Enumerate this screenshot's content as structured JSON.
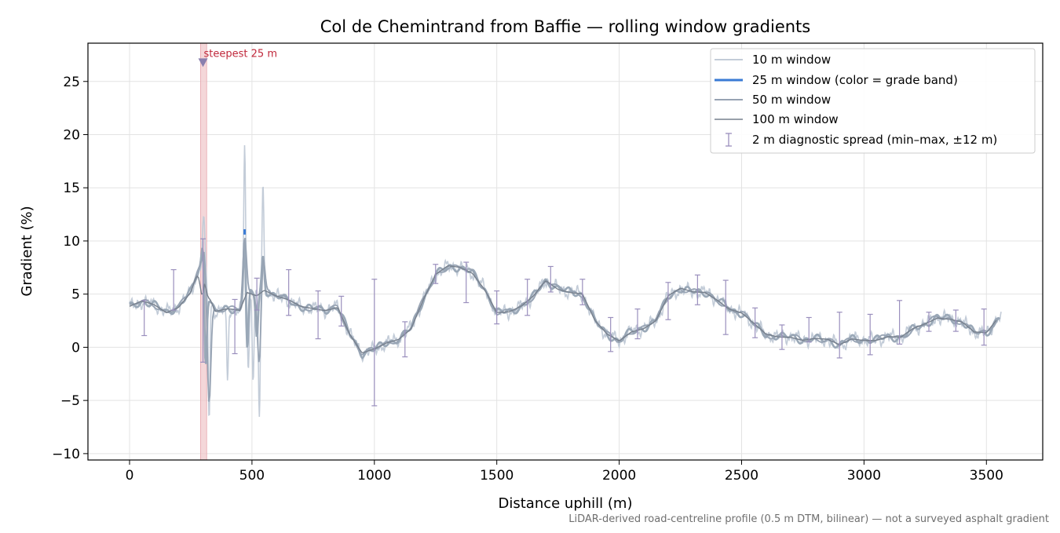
{
  "chart_data": {
    "type": "line",
    "title": "Col de Chemintrand from Baffie — rolling window gradients",
    "xlabel": "Distance uphill (m)",
    "ylabel": "Gradient (%)",
    "xlim": [
      -170,
      3730
    ],
    "ylim": [
      -10.6,
      28.6
    ],
    "xticks": [
      0,
      500,
      1000,
      1500,
      2000,
      2500,
      3000,
      3500
    ],
    "yticks": [
      -10,
      -5,
      0,
      5,
      10,
      15,
      20,
      25
    ],
    "xtick_labels": [
      "0",
      "500",
      "1000",
      "1500",
      "2000",
      "2500",
      "3000",
      "3500"
    ],
    "ytick_labels": [
      "−10",
      "−5",
      "0",
      "5",
      "10",
      "15",
      "20",
      "25"
    ],
    "grid": true,
    "legend_placement": "upper right",
    "footnote": "LiDAR-derived road-centreline profile (0.5 m DTM, bilinear) — not a surveyed asphalt gradient",
    "annotation": {
      "text": "steepest 25 m",
      "x": 300,
      "y": 26.8,
      "band": [
        290,
        315
      ]
    },
    "colors": {
      "w10": "#c3ccd8",
      "w25": "#3a7bd5",
      "w25_line": "#9aa8b7",
      "w50": "#97a3b3",
      "w100": "#77808d",
      "spread": "#9a8fbd",
      "band": "#f0c9cc",
      "band_edge": "#e6a6ad",
      "marker": "#8a7fae"
    },
    "series": [
      {
        "key": "w10",
        "name": "10 m window"
      },
      {
        "key": "w25",
        "name": "25 m window (color = grade band)"
      },
      {
        "key": "w50",
        "name": "50 m window"
      },
      {
        "key": "w100",
        "name": "100 m window"
      },
      {
        "key": "spread",
        "name": "2 m diagnostic spread (min–max, ±12 m)"
      }
    ],
    "profile_points": [
      [
        0,
        3.8
      ],
      [
        50,
        4.3
      ],
      [
        100,
        4.0
      ],
      [
        150,
        3.3
      ],
      [
        200,
        3.8
      ],
      [
        250,
        5.2
      ],
      [
        290,
        7.8
      ],
      [
        305,
        9.5
      ],
      [
        320,
        5.0
      ],
      [
        350,
        3.3
      ],
      [
        400,
        3.6
      ],
      [
        450,
        3.5
      ],
      [
        480,
        5.2
      ],
      [
        520,
        4.9
      ],
      [
        550,
        5.4
      ],
      [
        600,
        4.8
      ],
      [
        650,
        4.4
      ],
      [
        700,
        3.8
      ],
      [
        800,
        3.5
      ],
      [
        850,
        3.8
      ],
      [
        900,
        1.2
      ],
      [
        950,
        -0.6
      ],
      [
        1000,
        -0.2
      ],
      [
        1050,
        0.4
      ],
      [
        1100,
        0.8
      ],
      [
        1150,
        1.8
      ],
      [
        1200,
        4.5
      ],
      [
        1250,
        6.8
      ],
      [
        1300,
        7.6
      ],
      [
        1350,
        7.5
      ],
      [
        1400,
        7.0
      ],
      [
        1450,
        5.5
      ],
      [
        1500,
        3.3
      ],
      [
        1550,
        3.3
      ],
      [
        1600,
        3.8
      ],
      [
        1650,
        4.8
      ],
      [
        1700,
        6.3
      ],
      [
        1750,
        5.5
      ],
      [
        1800,
        5.2
      ],
      [
        1850,
        5.0
      ],
      [
        1900,
        2.5
      ],
      [
        1950,
        1.2
      ],
      [
        2000,
        0.6
      ],
      [
        2050,
        1.5
      ],
      [
        2100,
        1.8
      ],
      [
        2150,
        2.5
      ],
      [
        2200,
        4.8
      ],
      [
        2250,
        5.5
      ],
      [
        2300,
        5.2
      ],
      [
        2350,
        5.2
      ],
      [
        2400,
        4.5
      ],
      [
        2450,
        3.6
      ],
      [
        2500,
        3.2
      ],
      [
        2550,
        2.2
      ],
      [
        2600,
        1.2
      ],
      [
        2650,
        1.0
      ],
      [
        2700,
        1.0
      ],
      [
        2750,
        0.7
      ],
      [
        2800,
        0.8
      ],
      [
        2850,
        0.7
      ],
      [
        2900,
        0.2
      ],
      [
        2950,
        0.8
      ],
      [
        3000,
        0.7
      ],
      [
        3050,
        0.7
      ],
      [
        3100,
        1.0
      ],
      [
        3150,
        0.9
      ],
      [
        3200,
        1.7
      ],
      [
        3250,
        2.2
      ],
      [
        3300,
        2.8
      ],
      [
        3350,
        2.7
      ],
      [
        3400,
        2.4
      ],
      [
        3450,
        1.4
      ],
      [
        3500,
        1.3
      ],
      [
        3550,
        2.8
      ]
    ],
    "spikes_10m": [
      [
        302,
        12.0
      ],
      [
        325,
        -6.5
      ],
      [
        470,
        19.2
      ],
      [
        485,
        -2.5
      ],
      [
        530,
        -6.6
      ],
      [
        545,
        15.1
      ],
      [
        505,
        -3.0
      ],
      [
        400,
        -3.2
      ]
    ],
    "spikes_25m": [
      [
        300,
        10.1
      ],
      [
        310,
        -1.5
      ],
      [
        470,
        11.0
      ],
      [
        480,
        -1.0
      ],
      [
        545,
        8.6
      ],
      [
        520,
        1.0
      ]
    ],
    "spikes_50m": [
      [
        300,
        8.8
      ],
      [
        325,
        -5.0
      ],
      [
        470,
        10.4
      ],
      [
        530,
        -1.5
      ],
      [
        545,
        8.7
      ]
    ],
    "spikes_100m": [
      [
        300,
        5.0
      ]
    ],
    "spread_bars": [
      [
        60,
        1.1,
        4.4
      ],
      [
        180,
        3.5,
        7.3
      ],
      [
        300,
        -1.4,
        10.2
      ],
      [
        430,
        -0.6,
        4.5
      ],
      [
        520,
        3.5,
        6.5
      ],
      [
        650,
        3.0,
        7.3
      ],
      [
        770,
        0.8,
        5.3
      ],
      [
        865,
        2.0,
        4.8
      ],
      [
        1000,
        -5.5,
        6.4
      ],
      [
        1125,
        -0.9,
        2.4
      ],
      [
        1250,
        6.0,
        7.8
      ],
      [
        1375,
        4.2,
        8.0
      ],
      [
        1500,
        2.2,
        5.3
      ],
      [
        1625,
        3.0,
        6.4
      ],
      [
        1720,
        5.2,
        7.6
      ],
      [
        1850,
        4.0,
        6.4
      ],
      [
        1965,
        -0.4,
        2.8
      ],
      [
        2075,
        0.8,
        3.6
      ],
      [
        2200,
        2.6,
        6.1
      ],
      [
        2320,
        4.0,
        6.8
      ],
      [
        2435,
        1.2,
        6.3
      ],
      [
        2555,
        0.9,
        3.7
      ],
      [
        2665,
        -0.2,
        2.1
      ],
      [
        2775,
        0.5,
        2.8
      ],
      [
        2900,
        -1.0,
        3.3
      ],
      [
        3025,
        -0.7,
        3.1
      ],
      [
        3145,
        0.3,
        4.4
      ],
      [
        3265,
        1.5,
        3.3
      ],
      [
        3375,
        1.5,
        3.5
      ],
      [
        3490,
        0.2,
        3.6
      ]
    ]
  }
}
